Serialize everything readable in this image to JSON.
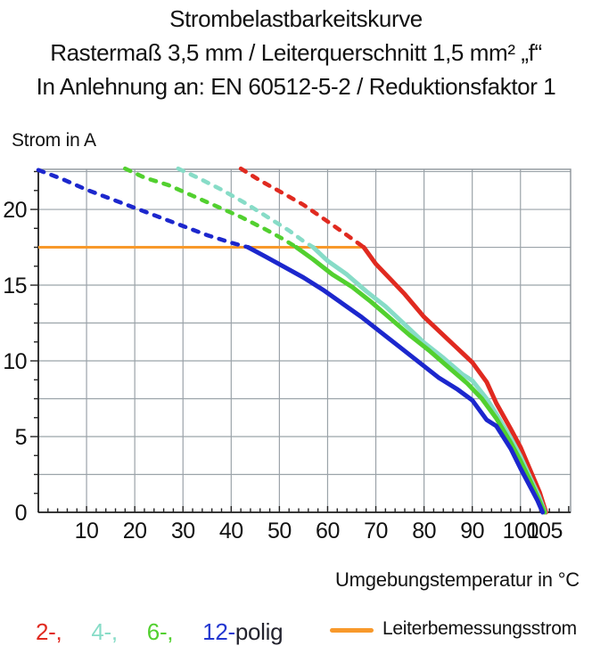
{
  "header": {
    "title": "Strombelastbarkeitskurve",
    "subtitle1": "Rastermaß 3,5 mm / Leiterquerschnitt 1,5 mm² „f“",
    "subtitle2": "In Anlehnung an: EN 60512-5-2 / Reduktionsfaktor 1"
  },
  "legend": {
    "poles": [
      {
        "label": "2-,",
        "color": "#e02a20"
      },
      {
        "label": "4-,",
        "color": "#87dcc7"
      },
      {
        "label": "6-,",
        "color": "#52d02f"
      },
      {
        "label": "12-",
        "color": "#2337d0"
      }
    ],
    "suffix": "polig",
    "rated_label": "Leiterbemessungsstrom",
    "rated_color": "#f8992b"
  },
  "chart_data": {
    "type": "line",
    "title": "Strombelastbarkeitskurve",
    "xlabel": "Umgebungstemperatur in °C",
    "ylabel": "Strom in A",
    "xlim": [
      0,
      110.4
    ],
    "ylim": [
      0,
      22.65
    ],
    "grid": true,
    "x_grid_step": 10,
    "y_grid_step": 2.5,
    "x_minor_tick_step": 2,
    "y_minor_tick_step": 1.25,
    "x_tick_labels": [
      10,
      20,
      30,
      40,
      50,
      60,
      70,
      80,
      90,
      100,
      105
    ],
    "y_tick_labels": [
      0,
      5,
      10,
      15,
      20
    ],
    "rated_current": {
      "label": "Leiterbemessungsstrom",
      "value": 17.5,
      "x_start": 0,
      "x_end": 67.5,
      "color": "#f8992b"
    },
    "dash_note": "curve segments above the rated current (17.5 A) are dashed, below solid",
    "series": [
      {
        "name": "2-polig",
        "color": "#e02a20",
        "points_dashed": [
          [
            42,
            22.7
          ],
          [
            46,
            21.9
          ],
          [
            50,
            21.2
          ],
          [
            55,
            20.3
          ],
          [
            60,
            19.2
          ],
          [
            64,
            18.3
          ],
          [
            67.5,
            17.5
          ]
        ],
        "points_solid": [
          [
            67.5,
            17.5
          ],
          [
            70,
            16.4
          ],
          [
            73,
            15.4
          ],
          [
            76,
            14.4
          ],
          [
            80,
            12.9
          ],
          [
            84,
            11.7
          ],
          [
            88,
            10.5
          ],
          [
            90,
            9.9
          ],
          [
            93,
            8.6
          ],
          [
            95,
            7.2
          ],
          [
            98,
            5.5
          ],
          [
            100,
            4.3
          ],
          [
            102,
            2.8
          ],
          [
            104,
            1.3
          ],
          [
            105.3,
            0
          ]
        ]
      },
      {
        "name": "4-polig",
        "color": "#87dcc7",
        "points_dashed": [
          [
            29,
            22.7
          ],
          [
            33,
            22.1
          ],
          [
            38,
            21.3
          ],
          [
            43,
            20.4
          ],
          [
            48,
            19.4
          ],
          [
            52,
            18.6
          ],
          [
            55,
            17.9
          ],
          [
            57,
            17.5
          ]
        ],
        "points_solid": [
          [
            57,
            17.5
          ],
          [
            60,
            16.6
          ],
          [
            64,
            15.7
          ],
          [
            68,
            14.6
          ],
          [
            72,
            13.6
          ],
          [
            76,
            12.4
          ],
          [
            80,
            11.2
          ],
          [
            84,
            10.2
          ],
          [
            88,
            9.1
          ],
          [
            90,
            8.7
          ],
          [
            93,
            7.5
          ],
          [
            95,
            6.5
          ],
          [
            98,
            4.9
          ],
          [
            100,
            3.7
          ],
          [
            102,
            2.3
          ],
          [
            103.8,
            1.1
          ],
          [
            105.1,
            0
          ]
        ]
      },
      {
        "name": "6-polig",
        "color": "#52d02f",
        "points_dashed": [
          [
            18,
            22.7
          ],
          [
            22,
            22.1
          ],
          [
            27,
            21.6
          ],
          [
            32,
            20.9
          ],
          [
            37,
            20.2
          ],
          [
            42,
            19.5
          ],
          [
            47,
            18.7
          ],
          [
            51,
            18.0
          ],
          [
            53.5,
            17.5
          ]
        ],
        "points_solid": [
          [
            53.5,
            17.5
          ],
          [
            57,
            16.7
          ],
          [
            61,
            15.7
          ],
          [
            65,
            14.9
          ],
          [
            69,
            13.9
          ],
          [
            73,
            12.8
          ],
          [
            77,
            11.7
          ],
          [
            81,
            10.7
          ],
          [
            85,
            9.6
          ],
          [
            89,
            8.5
          ],
          [
            92,
            7.5
          ],
          [
            95,
            6.2
          ],
          [
            98,
            4.6
          ],
          [
            100,
            3.4
          ],
          [
            102,
            2.1
          ],
          [
            103.6,
            1.0
          ],
          [
            105,
            0
          ]
        ]
      },
      {
        "name": "12-polig",
        "color": "#1c27cd",
        "points_dashed": [
          [
            0,
            22.6
          ],
          [
            5,
            22.0
          ],
          [
            10,
            21.3
          ],
          [
            15,
            20.7
          ],
          [
            20,
            20.1
          ],
          [
            25,
            19.5
          ],
          [
            30,
            18.9
          ],
          [
            35,
            18.3
          ],
          [
            40,
            17.8
          ],
          [
            43.5,
            17.5
          ]
        ],
        "points_solid": [
          [
            43.5,
            17.5
          ],
          [
            47,
            16.9
          ],
          [
            51,
            16.2
          ],
          [
            55,
            15.5
          ],
          [
            59,
            14.7
          ],
          [
            63,
            13.8
          ],
          [
            67,
            12.9
          ],
          [
            71,
            11.9
          ],
          [
            75,
            10.9
          ],
          [
            79,
            9.9
          ],
          [
            83,
            8.9
          ],
          [
            87,
            8.1
          ],
          [
            90,
            7.4
          ],
          [
            93,
            6.1
          ],
          [
            95,
            5.7
          ],
          [
            98,
            4.2
          ],
          [
            100,
            2.9
          ],
          [
            102,
            1.7
          ],
          [
            103.5,
            0.8
          ],
          [
            104.6,
            0
          ]
        ]
      }
    ]
  }
}
